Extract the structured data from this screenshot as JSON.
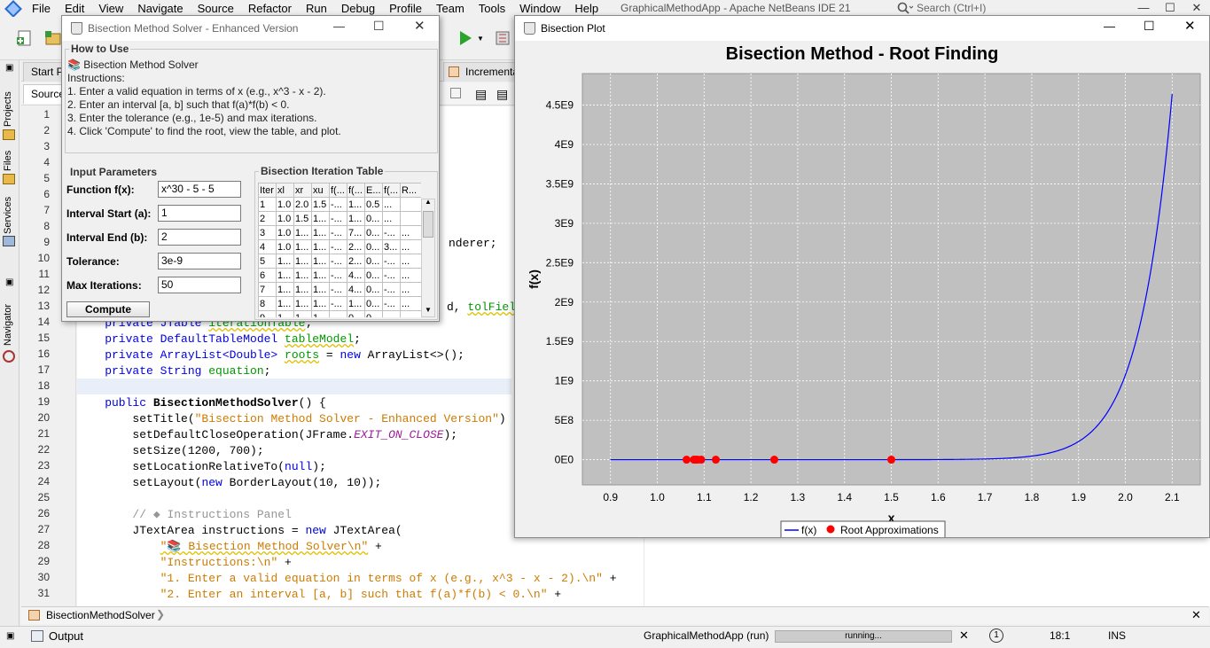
{
  "ide": {
    "title": "GraphicalMethodApp - Apache NetBeans IDE 21",
    "search_placeholder": "Search (Ctrl+I)",
    "menu": [
      "File",
      "Edit",
      "View",
      "Navigate",
      "Source",
      "Refactor",
      "Run",
      "Debug",
      "Profile",
      "Team",
      "Tools",
      "Window",
      "Help"
    ],
    "left_tabs": [
      "Projects",
      "Files",
      "Services",
      "Navigator"
    ],
    "editor_tabs": {
      "start": "Start Pa",
      "incremental": "Incrementa"
    },
    "source_tab": "Source",
    "code_lines": [
      {
        "n": "1",
        "html": ""
      },
      {
        "n": "2",
        "html": ""
      },
      {
        "n": "3",
        "html": ""
      },
      {
        "n": "4",
        "html": ""
      },
      {
        "n": "5",
        "html": ""
      },
      {
        "n": "6",
        "html": ""
      },
      {
        "n": "7",
        "html": ""
      },
      {
        "n": "8",
        "html": ""
      },
      {
        "n": "9",
        "html": ""
      },
      {
        "n": "10",
        "html": ""
      },
      {
        "n": "11",
        "html": ""
      },
      {
        "n": "12",
        "html": ""
      },
      {
        "n": "13",
        "html": ""
      },
      {
        "n": "14",
        "html": ""
      },
      {
        "n": "15",
        "html": ""
      },
      {
        "n": "16",
        "html": ""
      },
      {
        "n": "17",
        "html": ""
      },
      {
        "n": "18",
        "html": ""
      },
      {
        "n": "19",
        "html": ""
      },
      {
        "n": "20",
        "html": ""
      },
      {
        "n": "21",
        "html": ""
      },
      {
        "n": "22",
        "html": ""
      },
      {
        "n": "23",
        "html": ""
      },
      {
        "n": "24",
        "html": ""
      },
      {
        "n": "25",
        "html": ""
      },
      {
        "n": "26",
        "html": ""
      },
      {
        "n": "27",
        "html": ""
      },
      {
        "n": "28",
        "html": ""
      },
      {
        "n": "29",
        "html": ""
      },
      {
        "n": "30",
        "html": ""
      },
      {
        "n": "31",
        "html": ""
      }
    ],
    "code": {
      "l9": "nderer;",
      "l13a": "d, ",
      "l13b": "tolField",
      "l14a": "    private JTable ",
      "l14b": "iterationTable",
      "l14c": ";",
      "l15a": "    private DefaultTableModel ",
      "l15b": "tableModel",
      "l15c": ";",
      "l16a": "    private ArrayList<Double> ",
      "l16b": "roots",
      "l16c": " = ",
      "l16d": "new",
      "l16e": " ArrayList<>();",
      "l17a": "    private String ",
      "l17b": "equation",
      "l17c": ";",
      "l19a": "    public ",
      "l19b": "BisectionMethodSolver",
      "l19c": "() {",
      "l20a": "        setTitle(",
      "l20b": "\"Bisection Method Solver - Enhanced Version\"",
      "l20c": ")",
      "l21a": "        setDefaultCloseOperation(JFrame.",
      "l21b": "EXIT_ON_CLOSE",
      "l21c": ");",
      "l22": "        setSize(1200, 700);",
      "l23a": "        setLocationRelativeTo(",
      "l23b": "null",
      "l23c": ");",
      "l24a": "        setLayout(",
      "l24b": "new",
      "l24c": " BorderLayout(10, 10));",
      "l26": "        // ◆ Instructions Panel",
      "l27a": "        JTextArea instructions = ",
      "l27b": "new",
      "l27c": " JTextArea(",
      "l28a": "            ",
      "l28b": "\"📚 Bisection Method Solver\\n\"",
      "l28c": " +",
      "l29a": "            ",
      "l29b": "\"Instructions:\\n\"",
      "l29c": " +",
      "l30a": "            ",
      "l30b": "\"1. Enter a valid equation in terms of x (e.g., x^3 - x - 2).\\n\"",
      "l30c": " +",
      "l31a": "            ",
      "l31b": "\"2. Enter an interval [a, b] such that f(a)*f(b) < 0.\\n\"",
      "l31c": " +"
    },
    "navbar_item": "BisectionMethodSolver",
    "output_tab": "Output",
    "status": {
      "run_label": "GraphicalMethodApp (run)",
      "progress": "running...",
      "position": "18:1",
      "mode": "INS"
    }
  },
  "solver": {
    "title": "Bisection Method Solver - Enhanced Version",
    "how_to": {
      "title": "How to Use",
      "lines": [
        "📚 Bisection Method Solver",
        "Instructions:",
        "1. Enter a valid equation in terms of x (e.g., x^3 - x - 2).",
        "2. Enter an interval [a, b] such that f(a)*f(b) < 0.",
        "3. Enter the tolerance (e.g., 1e-5) and max iterations.",
        "4. Click 'Compute' to find the root, view the table, and plot."
      ]
    },
    "inputs": {
      "title": "Input Parameters",
      "function_label": "Function f(x):",
      "function_value": "x^30 - 5 - 5",
      "a_label": "Interval Start (a):",
      "a_value": "1",
      "b_label": "Interval End (b):",
      "b_value": "2",
      "tol_label": "Tolerance:",
      "tol_value": "3e-9",
      "max_label": "Max Iterations:",
      "max_value": "50",
      "compute": "Compute"
    },
    "table": {
      "title": "Bisection Iteration Table",
      "headers": [
        "Iter",
        "xl",
        "xr",
        "xu",
        "f(...",
        "f(...",
        "E...",
        "f(...",
        "R..."
      ],
      "rows": [
        [
          "1",
          "1.0",
          "2.0",
          "1.5",
          "-...",
          "1...",
          "0.5",
          "...",
          ""
        ],
        [
          "2",
          "1.0",
          "1.5",
          "1...",
          "-...",
          "1...",
          "0...",
          "...",
          ""
        ],
        [
          "3",
          "1.0",
          "1...",
          "1...",
          "-...",
          "7...",
          "0...",
          "-...",
          "..."
        ],
        [
          "4",
          "1.0",
          "1...",
          "1...",
          "-...",
          "2...",
          "0...",
          "3...",
          "..."
        ],
        [
          "5",
          "1...",
          "1...",
          "1...",
          "-...",
          "2...",
          "0...",
          "-...",
          "..."
        ],
        [
          "6",
          "1...",
          "1...",
          "1...",
          "-...",
          "4...",
          "0...",
          "-...",
          "..."
        ],
        [
          "7",
          "1...",
          "1...",
          "1...",
          "-...",
          "4...",
          "0...",
          "-...",
          "..."
        ],
        [
          "8",
          "1...",
          "1...",
          "1...",
          "-...",
          "1...",
          "0...",
          "-...",
          "..."
        ],
        [
          "9",
          "1...",
          "1...",
          "1...",
          "-...",
          "0...",
          "0...",
          "-...",
          "..."
        ]
      ]
    }
  },
  "plot_window": {
    "title": "Bisection Plot"
  },
  "chart_data": {
    "type": "line",
    "title": "Bisection Method - Root Finding",
    "xlabel": "x",
    "ylabel": "f(x)",
    "xlim": [
      0.84,
      2.16
    ],
    "ylim": [
      -320000000.0,
      4900000000.0
    ],
    "x_ticks": [
      0.9,
      1.0,
      1.1,
      1.2,
      1.3,
      1.4,
      1.5,
      1.6,
      1.7,
      1.8,
      1.9,
      2.0,
      2.1
    ],
    "x_tick_labels": [
      "0.9",
      "1.0",
      "1.1",
      "1.2",
      "1.3",
      "1.4",
      "1.5",
      "1.6",
      "1.7",
      "1.8",
      "1.9",
      "2.0",
      "2.1"
    ],
    "y_ticks": [
      0,
      500000000.0,
      1000000000.0,
      1500000000.0,
      2000000000.0,
      2500000000.0,
      3000000000.0,
      3500000000.0,
      4000000000.0,
      4500000000.0
    ],
    "y_tick_labels": [
      "0E0",
      "5E8",
      "1E9",
      "1.5E9",
      "2E9",
      "2.5E9",
      "3E9",
      "3.5E9",
      "4E9",
      "4.5E9"
    ],
    "grid": true,
    "legend_position": "bottom",
    "series": [
      {
        "name": "f(x)",
        "kind": "line",
        "color": "#0000ff",
        "function": "x^30 - 5 - 5",
        "x_range": [
          0.9,
          2.1
        ]
      },
      {
        "name": "Root Approximations",
        "kind": "scatter",
        "color": "#ff0000",
        "x": [
          1.5,
          1.25,
          1.125,
          1.0625,
          1.09375,
          1.078125,
          1.0859375,
          1.08203125
        ],
        "y": [
          0,
          0,
          0,
          0,
          0,
          0,
          0,
          0
        ]
      }
    ]
  }
}
